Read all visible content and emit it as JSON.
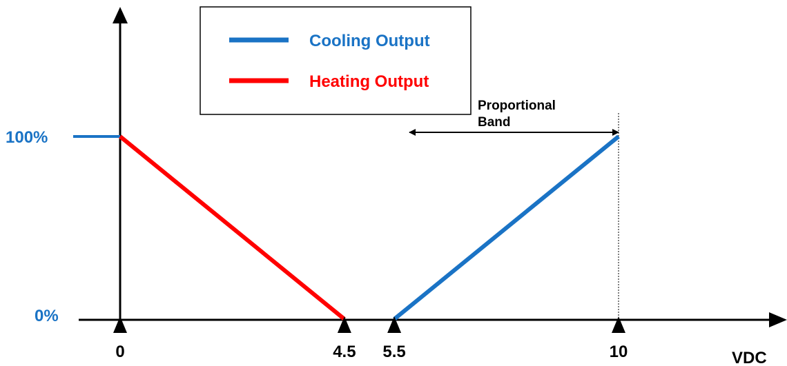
{
  "chart_data": {
    "type": "line",
    "x_unit_label": "VDC",
    "x_ticks": [
      {
        "value": 0,
        "label": "0"
      },
      {
        "value": 4.5,
        "label": "4.5"
      },
      {
        "value": 5.5,
        "label": "5.5"
      },
      {
        "value": 10,
        "label": "10"
      }
    ],
    "y_ticks": [
      {
        "value": 100,
        "label": "100%"
      },
      {
        "value": 0,
        "label": "0%"
      }
    ],
    "xlim": [
      0,
      10
    ],
    "ylim": [
      0,
      100
    ],
    "series": [
      {
        "name": "Heating Output",
        "color": "#ff0000",
        "x": [
          0,
          4.5
        ],
        "y": [
          100,
          0
        ]
      },
      {
        "name": "Cooling Output",
        "color": "#1a73c5",
        "x": [
          5.5,
          10
        ],
        "y": [
          0,
          100
        ]
      }
    ],
    "legend": {
      "placement": "top-center",
      "entries": [
        {
          "name": "Cooling Output",
          "color": "#1a73c5"
        },
        {
          "name": "Heating Output",
          "color": "#ff0000"
        }
      ]
    },
    "annotation": {
      "lines": [
        "Proportional",
        "Band"
      ],
      "from_x": 5.5,
      "to_x": 10
    },
    "axis_color": "#000000",
    "tick_label_color": "#000000",
    "y_label_color": "#1a73c5",
    "grid": false
  }
}
